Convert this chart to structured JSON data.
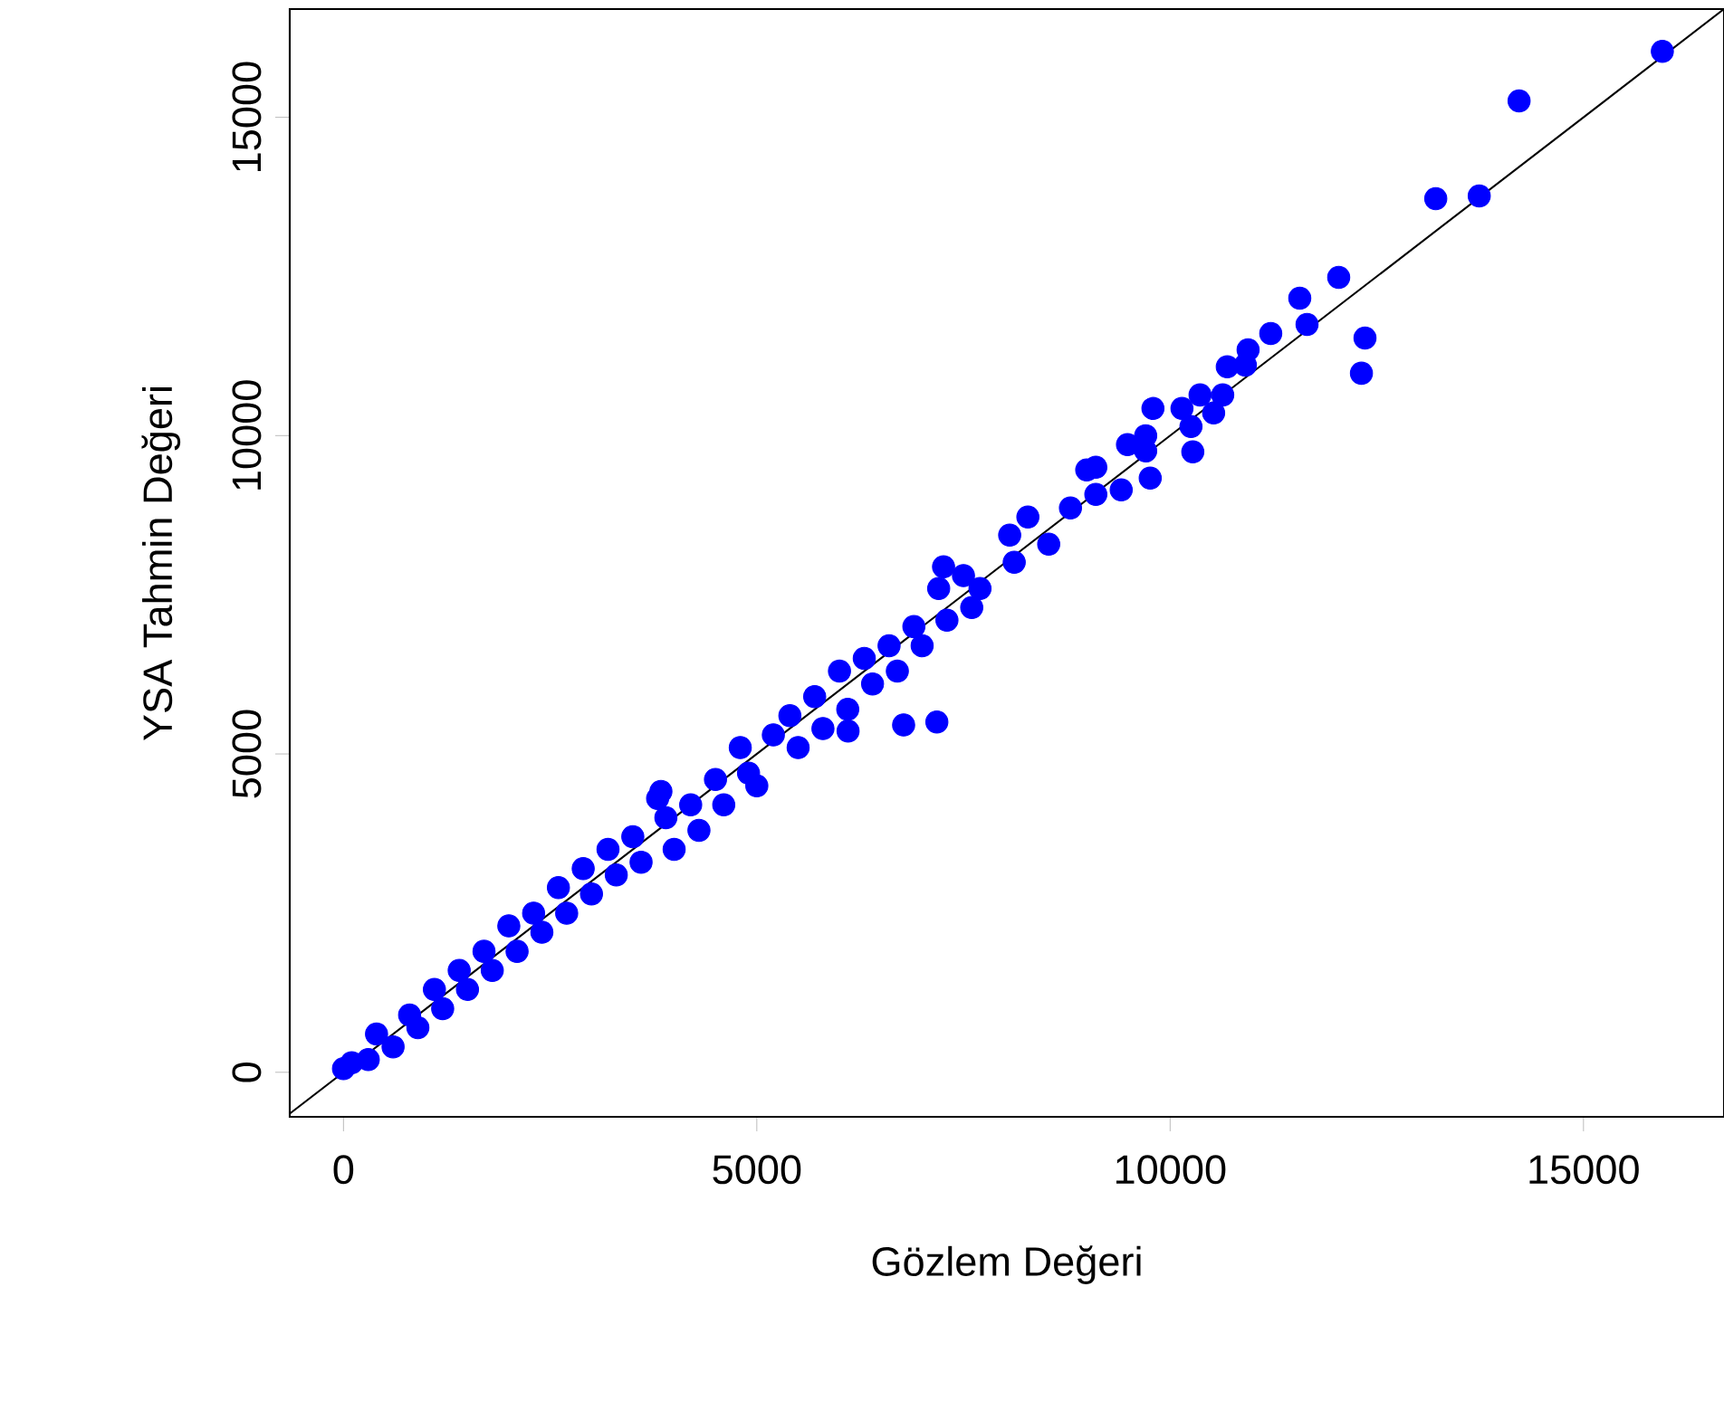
{
  "chart_data": {
    "type": "scatter",
    "xlabel": "Gözlem Değeri",
    "ylabel": "YSA Tahmin Değeri",
    "xlim": [
      -650,
      16700
    ],
    "ylim": [
      -700,
      16700
    ],
    "xticks": [
      0,
      5000,
      10000,
      15000
    ],
    "yticks": [
      0,
      5000,
      10000,
      15000
    ],
    "grid": false,
    "legend": false,
    "series": [
      {
        "marker": "circle",
        "color": "#0000ff",
        "x": [
          0,
          100,
          300,
          400,
          600,
          800,
          900,
          1100,
          1200,
          1400,
          1500,
          1700,
          1800,
          2000,
          2100,
          2300,
          2400,
          2600,
          2700,
          2900,
          3000,
          3200,
          3300,
          3500,
          3600,
          3800,
          3840,
          3900,
          4000,
          4200,
          4300,
          4500,
          4600,
          4800,
          4900,
          5000,
          5200,
          5400,
          5500,
          5700,
          5800,
          6000,
          6100,
          6104,
          6300,
          6400,
          6600,
          6700,
          6776,
          6900,
          7000,
          7178,
          7200,
          7259,
          7300,
          7500,
          7600,
          7700,
          8059,
          8114,
          8279,
          8531,
          8794,
          8991,
          9101,
          9101,
          9408,
          9484,
          9704,
          9704,
          9759,
          9792,
          10143,
          10252,
          10274,
          10362,
          10526,
          10636,
          10691,
          10910,
          10943,
          11217,
          11568,
          11656,
          12039,
          12314,
          12357,
          13213,
          13739,
          14221,
          15954
        ],
        "values": [
          57,
          150,
          200,
          600,
          400,
          900,
          700,
          1300,
          1000,
          1600,
          1300,
          1900,
          1600,
          2300,
          1900,
          2500,
          2200,
          2900,
          2500,
          3200,
          2800,
          3500,
          3100,
          3700,
          3300,
          4300,
          4412,
          4000,
          3500,
          4200,
          3800,
          4600,
          4200,
          5100,
          4700,
          4500,
          5300,
          5600,
          5100,
          5900,
          5400,
          6300,
          5700,
          5360,
          6500,
          6100,
          6700,
          6300,
          5455,
          7000,
          6700,
          5502,
          7600,
          7940,
          7100,
          7800,
          7300,
          7600,
          8438,
          8011,
          8722,
          8295,
          8864,
          9460,
          9503,
          9077,
          9148,
          9858,
          9999,
          9758,
          9332,
          10426,
          10426,
          10142,
          9744,
          10639,
          10355,
          10639,
          11080,
          11108,
          11349,
          11605,
          12159,
          11747,
          12486,
          10980,
          11534,
          13722,
          13764,
          15256,
          16037
        ]
      },
      {
        "type": "line",
        "marker": "none",
        "color": "#000000",
        "x": [
          -650,
          16700
        ],
        "values": [
          -650,
          16700
        ]
      }
    ]
  }
}
